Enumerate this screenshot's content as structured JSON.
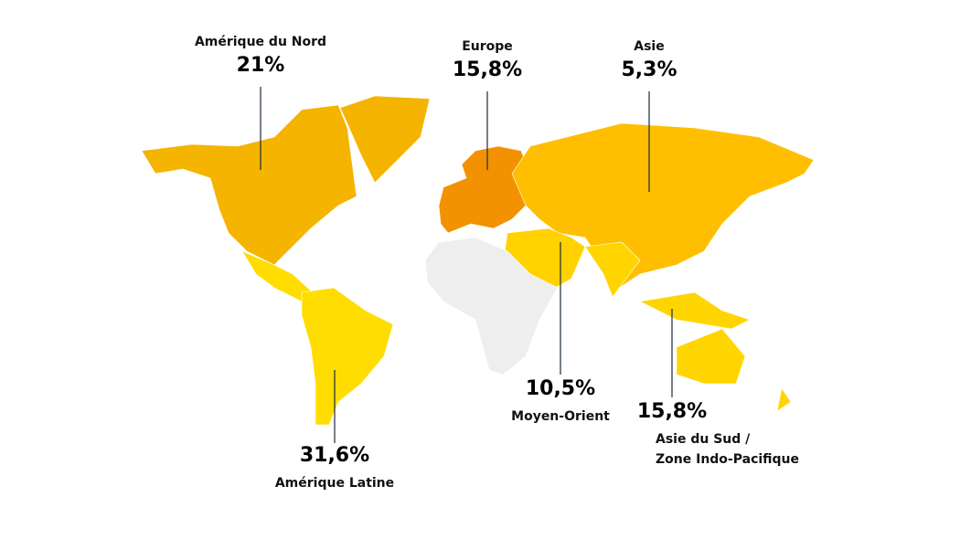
{
  "regions": [
    {
      "label": [
        "Amérique du Nord"
      ],
      "share": "21%"
    },
    {
      "label": [
        "Europe"
      ],
      "share": "15,8%"
    },
    {
      "label": [
        "Asie"
      ],
      "share": "5,3%"
    },
    {
      "label": [
        "Moyen-Orient"
      ],
      "share": "10,5%"
    },
    {
      "label": [
        "Asie du Sud /",
        "Zone Indo-Pacifique"
      ],
      "share": "15,8%"
    },
    {
      "label": [
        "Amérique Latine"
      ],
      "share": "31,6%"
    }
  ]
}
